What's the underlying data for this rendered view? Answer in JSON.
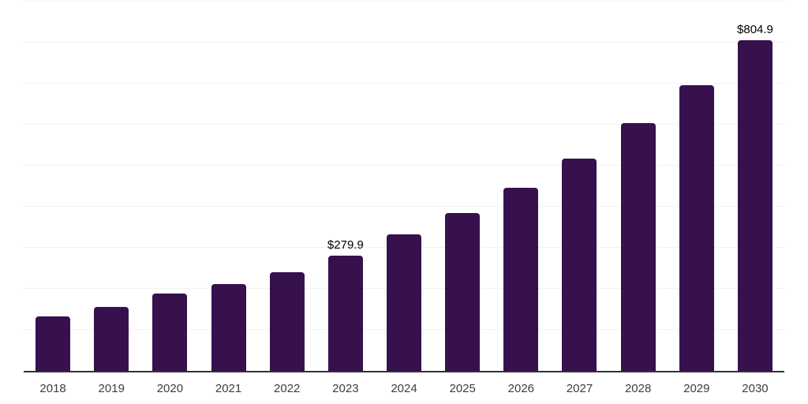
{
  "chart_data": {
    "type": "bar",
    "categories": [
      "2018",
      "2019",
      "2020",
      "2021",
      "2022",
      "2023",
      "2024",
      "2025",
      "2026",
      "2027",
      "2028",
      "2029",
      "2030"
    ],
    "values": [
      133,
      155,
      188,
      211,
      240,
      279.9,
      333,
      384,
      447,
      518,
      604,
      696,
      804.9
    ],
    "data_labels": {
      "2023": "$279.9",
      "2030": "$804.9"
    },
    "title": "",
    "xlabel": "",
    "ylabel": "",
    "ylim": [
      0,
      900
    ],
    "gridline_step": 100,
    "grid": "horizontal-only",
    "legend": "none",
    "bar_color": "#36114D",
    "currency_prefix": "$"
  },
  "colors": {
    "background": "#ffffff",
    "bar": "#36114D",
    "axis_line": "#333333",
    "gridline": "#f2f2f2",
    "tick_label": "#3d3d3d",
    "data_label": "#000000"
  }
}
